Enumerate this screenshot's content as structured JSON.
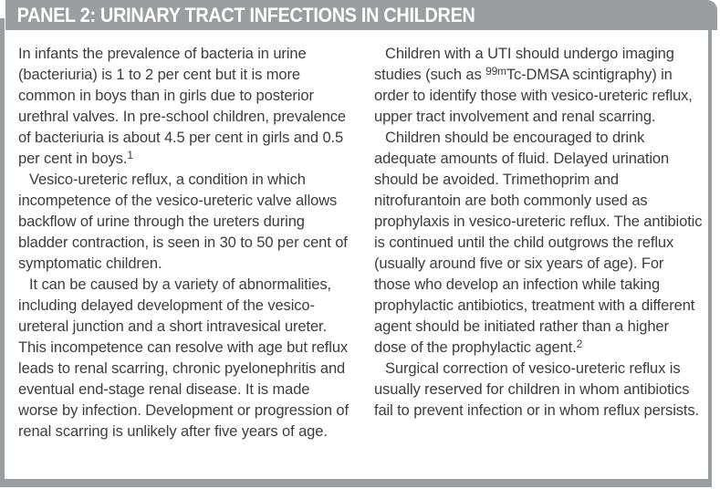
{
  "panel": {
    "title": "PANEL 2: URINARY TRACT INFECTIONS IN CHILDREN",
    "colors": {
      "header_bg": "#9b9ea1",
      "border": "#9b9ea1",
      "title_text": "#ffffff",
      "body_text": "#3d3d3f"
    },
    "columns": {
      "left": {
        "paragraphs": [
          {
            "indent": false,
            "segments": [
              {
                "text": "In infants the prevalence of bacteria in urine (bacteriuria) is 1 to 2 per cent but it is more common in boys than in girls due to posterior urethral valves. In pre-school children, prevalence of bacteriuria is about 4.5 per cent in girls and 0.5 per cent in boys."
              },
              {
                "text": "1",
                "sup": true
              }
            ]
          },
          {
            "indent": true,
            "segments": [
              {
                "text": "Vesico-ureteric reflux, a condition in which incompetence of the vesico-ureteric valve allows backflow of urine through the ureters during bladder contraction, is seen in 30 to 50 per cent of symptomatic children."
              }
            ]
          },
          {
            "indent": true,
            "segments": [
              {
                "text": "It can be caused by a variety of abnormalities, including delayed development of the vesico-ureteral junction and a short intravesical ureter. This incompetence can resolve with age but reflux leads to renal scarring, chronic pyelonephritis and eventual end-stage renal disease. It is made worse by infection. Development or progression of renal scarring is unlikely after five years of age."
              }
            ]
          }
        ]
      },
      "right": {
        "paragraphs": [
          {
            "indent": true,
            "segments": [
              {
                "text": "Children with a UTI should undergo imaging studies (such as "
              },
              {
                "text": "99m",
                "sup": true
              },
              {
                "text": "Tc-DMSA scintigraphy) in order to identify those with vesico-ureteric reflux, upper tract involvement and renal scarring."
              }
            ]
          },
          {
            "indent": true,
            "segments": [
              {
                "text": "Children should be encouraged to drink adequate amounts of fluid. Delayed urination should be avoided. Trimethoprim and nitrofurantoin are both commonly used as prophylaxis in vesico-ureteric reflux. The antibiotic is continued until the child outgrows the reflux (usually around five or six years of age). For those who develop an infection while taking prophylactic antibiotics, treatment with a different agent should be initiated rather than a higher dose of the prophylactic agent."
              },
              {
                "text": "2",
                "sup": true
              }
            ]
          },
          {
            "indent": true,
            "segments": [
              {
                "text": "Surgical correction of vesico-ureteric reflux is usually reserved for children in whom antibiotics fail to prevent infection or in whom reflux persists."
              }
            ]
          }
        ]
      }
    }
  }
}
